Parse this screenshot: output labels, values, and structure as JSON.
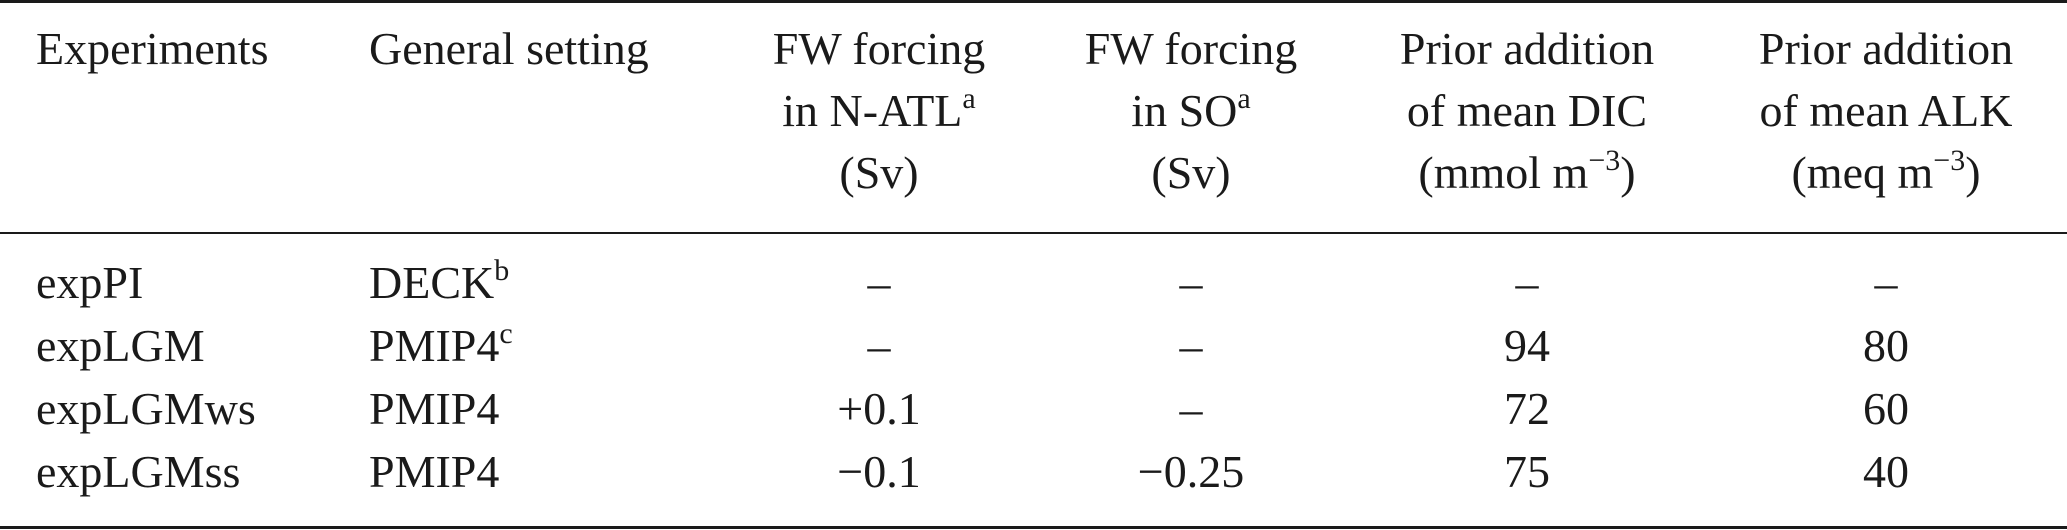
{
  "table": {
    "headers": {
      "experiments": "Experiments",
      "general_setting": "General setting",
      "fw_natl": {
        "line1": "FW forcing",
        "line2": "in N-ATL",
        "line2_sup": "a",
        "line3": "(Sv)"
      },
      "fw_so": {
        "line1": "FW forcing",
        "line2": "in SO",
        "line2_sup": "a",
        "line3": "(Sv)"
      },
      "dic": {
        "line1": "Prior addition",
        "line2": "of mean DIC",
        "line3": "(mmol m",
        "line3_sup": "−3",
        "line3_end": ")"
      },
      "alk": {
        "line1": "Prior addition",
        "line2": "of mean ALK",
        "line3": "(meq m",
        "line3_sup": "−3",
        "line3_end": ")"
      }
    },
    "rows": [
      {
        "experiment": "expPI",
        "setting": "DECK",
        "setting_sup": "b",
        "fw_natl": "–",
        "fw_so": "–",
        "dic": "–",
        "alk": "–"
      },
      {
        "experiment": "expLGM",
        "setting": "PMIP4",
        "setting_sup": "c",
        "fw_natl": "–",
        "fw_so": "–",
        "dic": "94",
        "alk": "80"
      },
      {
        "experiment": "expLGMws",
        "setting": "PMIP4",
        "setting_sup": "",
        "fw_natl": "+0.1",
        "fw_so": "–",
        "dic": "72",
        "alk": "60"
      },
      {
        "experiment": "expLGMss",
        "setting": "PMIP4",
        "setting_sup": "",
        "fw_natl": "−0.1",
        "fw_so": "−0.25",
        "dic": "75",
        "alk": "40"
      }
    ]
  }
}
